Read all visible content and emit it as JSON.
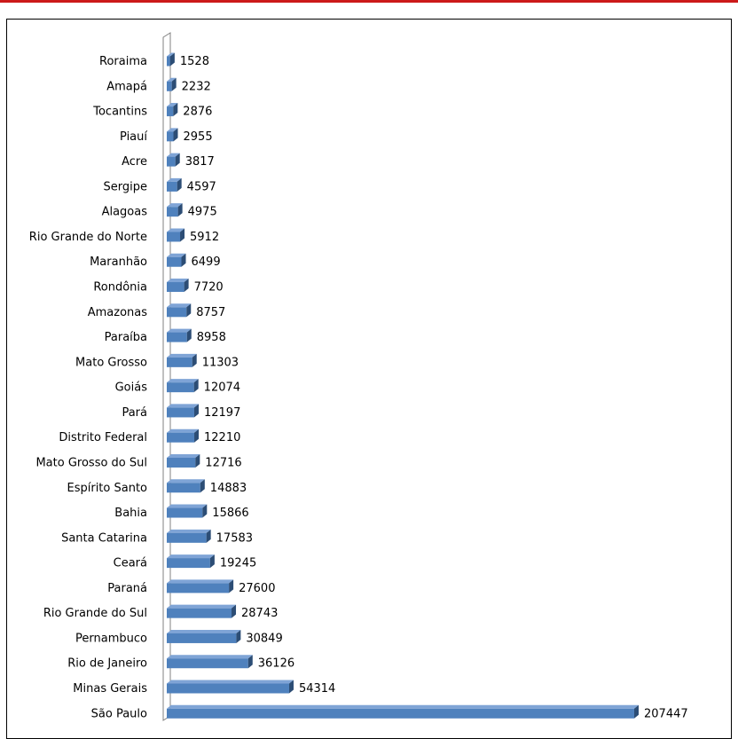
{
  "colors": {
    "bar": "#4f81bd",
    "bar_dark": "#2c4d75",
    "bar_light": "#7fa4d6",
    "frame_top_rule": "#cc1a1a"
  },
  "chart_data": {
    "type": "bar",
    "orientation": "horizontal",
    "style": "3d",
    "title": "",
    "xlabel": "",
    "ylabel": "",
    "grid": false,
    "legend": "none",
    "categories": [
      "Roraima",
      "Amapá",
      "Tocantins",
      "Piauí",
      "Acre",
      "Sergipe",
      "Alagoas",
      "Rio Grande do Norte",
      "Maranhão",
      "Rondônia",
      "Amazonas",
      "Paraíba",
      "Mato Grosso",
      "Goiás",
      "Pará",
      "Distrito Federal",
      "Mato Grosso do Sul",
      "Espírito Santo",
      "Bahia",
      "Santa Catarina",
      "Ceará",
      "Paraná",
      "Rio Grande do Sul",
      "Pernambuco",
      "Rio de Janeiro",
      "Minas Gerais",
      "São Paulo"
    ],
    "values": [
      1528,
      2232,
      2876,
      2955,
      3817,
      4597,
      4975,
      5912,
      6499,
      7720,
      8757,
      8958,
      11303,
      12074,
      12197,
      12210,
      12716,
      14883,
      15866,
      17583,
      19245,
      27600,
      28743,
      30849,
      36126,
      54314,
      207447
    ],
    "value_labels": [
      "1528",
      "2232",
      "2876",
      "2955",
      "3817",
      "4597",
      "4975",
      "5912",
      "6499",
      "7720",
      "8757",
      "8958",
      "11303",
      "12074",
      "12197",
      "12210",
      "12716",
      "14883",
      "15866",
      "17583",
      "19245",
      "27600",
      "28743",
      "30849",
      "36126",
      "54314",
      "207447"
    ],
    "xlim": [
      0,
      207447
    ]
  }
}
